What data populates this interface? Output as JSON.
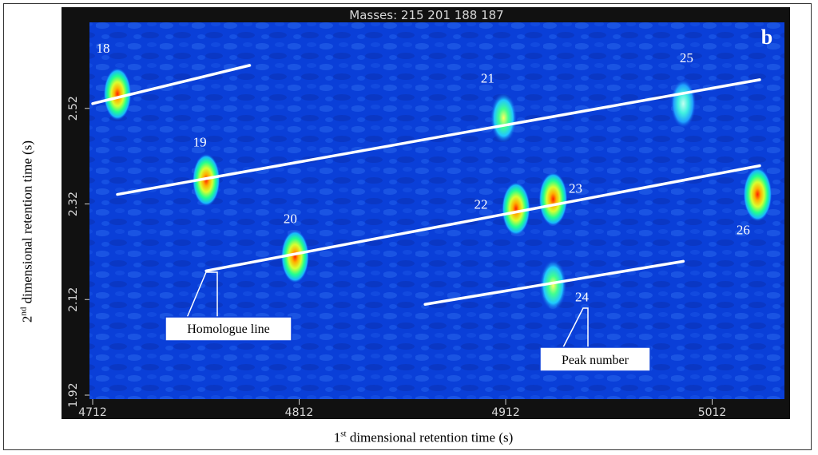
{
  "chart_data": {
    "type": "heatmap",
    "title": "Masses:  215 201 188 187",
    "panel_label": "b",
    "xlabel": {
      "base": "1",
      "sup": "st",
      "text": " dimensional retention time (s)"
    },
    "ylabel": {
      "base": "2",
      "sup": "nd",
      "text": " dimensional retention time (s)"
    },
    "xlim": [
      4712,
      5047
    ],
    "ylim": [
      1.92,
      2.7
    ],
    "xticks": [
      "4712",
      "4812",
      "4912",
      "5012"
    ],
    "yticks": [
      "1.92",
      "2.12",
      "2.32",
      "2.52"
    ],
    "colors": {
      "background": "#0a3fd8",
      "frame": "#111111",
      "line": "#ffffff"
    },
    "peaks": [
      {
        "label": "18",
        "x": 4724,
        "y": 2.55,
        "intensity": 0.85
      },
      {
        "label": "19",
        "x": 4767,
        "y": 2.37,
        "intensity": 0.85
      },
      {
        "label": "20",
        "x": 4810,
        "y": 2.21,
        "intensity": 0.9
      },
      {
        "label": "21",
        "x": 4911,
        "y": 2.5,
        "intensity": 0.7
      },
      {
        "label": "22",
        "x": 4917,
        "y": 2.31,
        "intensity": 0.95
      },
      {
        "label": "23",
        "x": 4935,
        "y": 2.33,
        "intensity": 1.0
      },
      {
        "label": "24",
        "x": 4935,
        "y": 2.15,
        "intensity": 0.75
      },
      {
        "label": "25",
        "x": 4998,
        "y": 2.53,
        "intensity": 0.5
      },
      {
        "label": "26",
        "x": 5034,
        "y": 2.34,
        "intensity": 1.0
      }
    ],
    "homologue_lines": [
      {
        "x": [
          4712,
          4788
        ],
        "y": [
          2.53,
          2.61
        ]
      },
      {
        "x": [
          4724,
          5035
        ],
        "y": [
          2.34,
          2.58
        ]
      },
      {
        "x": [
          4767,
          5035
        ],
        "y": [
          2.18,
          2.4
        ]
      },
      {
        "x": [
          4873,
          4998
        ],
        "y": [
          2.11,
          2.2
        ]
      }
    ],
    "annotations": [
      {
        "text": "Homologue line"
      },
      {
        "text": "Peak number"
      }
    ]
  }
}
